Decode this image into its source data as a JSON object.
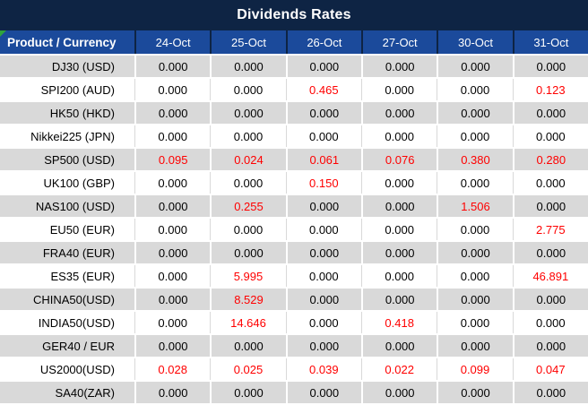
{
  "title": "Dividends Rates",
  "colors": {
    "title_bar": "#0E2444",
    "header_row": "#1B4A9B",
    "header_divider": "#0E2444",
    "shaded_row": "#D9D9D9",
    "plain_row": "#FFFFFF",
    "value_text": "#000000",
    "nonzero_value_text": "#FF0000",
    "header_text": "#FFFFFF",
    "corner_flag": "#2FA43C"
  },
  "chart_data": {
    "type": "table",
    "title": "Dividends Rates",
    "row_header_label": "Product / Currency",
    "columns": [
      "24-Oct",
      "25-Oct",
      "26-Oct",
      "27-Oct",
      "30-Oct",
      "31-Oct"
    ],
    "value_format": "3-decimals",
    "highlight_rule": "non-zero values shown in red",
    "rows": [
      {
        "product": "DJ30 (USD)",
        "values": [
          0.0,
          0.0,
          0.0,
          0.0,
          0.0,
          0.0
        ]
      },
      {
        "product": "SPI200 (AUD)",
        "values": [
          0.0,
          0.0,
          0.465,
          0.0,
          0.0,
          0.123
        ]
      },
      {
        "product": "HK50 (HKD)",
        "values": [
          0.0,
          0.0,
          0.0,
          0.0,
          0.0,
          0.0
        ]
      },
      {
        "product": "Nikkei225 (JPN)",
        "values": [
          0.0,
          0.0,
          0.0,
          0.0,
          0.0,
          0.0
        ]
      },
      {
        "product": "SP500 (USD)",
        "values": [
          0.095,
          0.024,
          0.061,
          0.076,
          0.38,
          0.28
        ]
      },
      {
        "product": "UK100 (GBP)",
        "values": [
          0.0,
          0.0,
          0.15,
          0.0,
          0.0,
          0.0
        ]
      },
      {
        "product": "NAS100 (USD)",
        "values": [
          0.0,
          0.255,
          0.0,
          0.0,
          1.506,
          0.0
        ]
      },
      {
        "product": "EU50 (EUR)",
        "values": [
          0.0,
          0.0,
          0.0,
          0.0,
          0.0,
          2.775
        ]
      },
      {
        "product": "FRA40 (EUR)",
        "values": [
          0.0,
          0.0,
          0.0,
          0.0,
          0.0,
          0.0
        ]
      },
      {
        "product": "ES35 (EUR)",
        "values": [
          0.0,
          5.995,
          0.0,
          0.0,
          0.0,
          46.891
        ]
      },
      {
        "product": "CHINA50(USD)",
        "values": [
          0.0,
          8.529,
          0.0,
          0.0,
          0.0,
          0.0
        ]
      },
      {
        "product": "INDIA50(USD)",
        "values": [
          0.0,
          14.646,
          0.0,
          0.418,
          0.0,
          0.0
        ]
      },
      {
        "product": "GER40 / EUR",
        "values": [
          0.0,
          0.0,
          0.0,
          0.0,
          0.0,
          0.0
        ]
      },
      {
        "product": "US2000(USD)",
        "values": [
          0.028,
          0.025,
          0.039,
          0.022,
          0.099,
          0.047
        ]
      },
      {
        "product": "SA40(ZAR)",
        "values": [
          0.0,
          0.0,
          0.0,
          0.0,
          0.0,
          0.0
        ]
      }
    ]
  }
}
